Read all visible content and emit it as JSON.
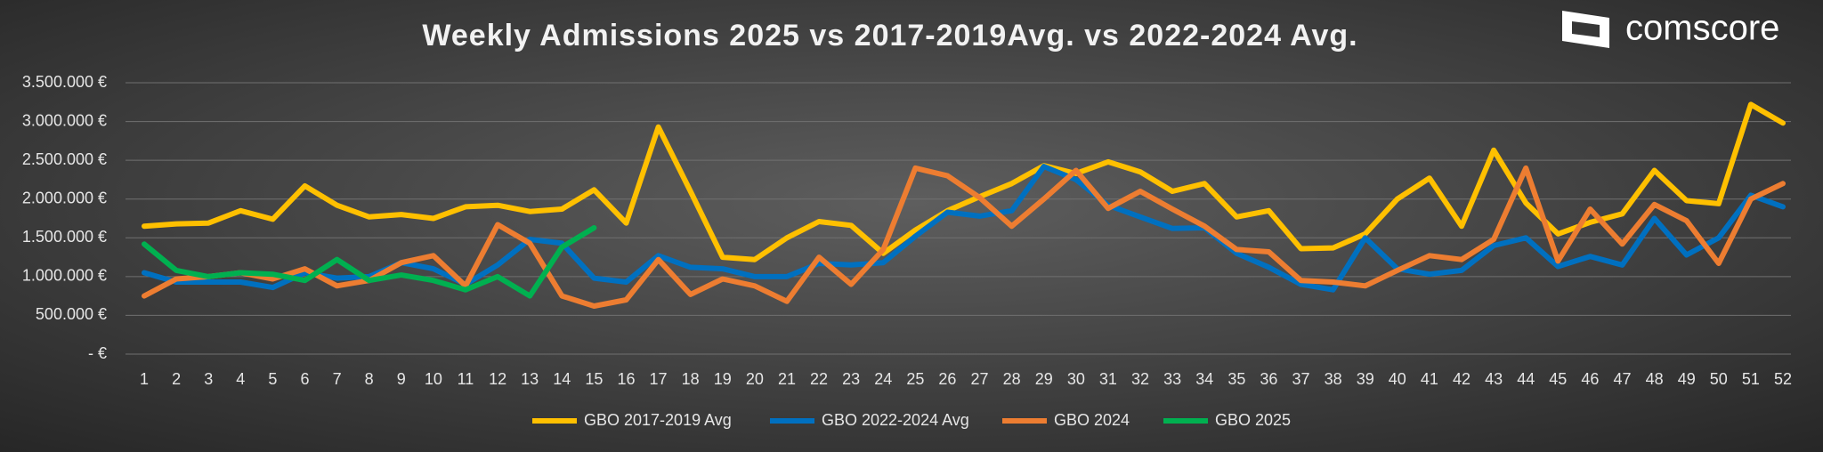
{
  "chart_data": {
    "type": "line",
    "title": "Weekly Admissions 2025 vs 2017-2019Avg. vs 2022-2024 Avg.",
    "logo": "comscore",
    "categories": [
      "1",
      "2",
      "3",
      "4",
      "5",
      "6",
      "7",
      "8",
      "9",
      "10",
      "11",
      "12",
      "13",
      "14",
      "15",
      "16",
      "17",
      "18",
      "19",
      "20",
      "21",
      "22",
      "23",
      "24",
      "25",
      "26",
      "27",
      "28",
      "29",
      "30",
      "31",
      "32",
      "33",
      "34",
      "35",
      "36",
      "37",
      "38",
      "39",
      "40",
      "41",
      "42",
      "43",
      "44",
      "45",
      "46",
      "47",
      "48",
      "49",
      "50",
      "51",
      "52"
    ],
    "ylim": [
      0,
      3500000
    ],
    "yticks": [
      {
        "value": 0,
        "label": "-  €"
      },
      {
        "value": 500000,
        "label": "500.000 €"
      },
      {
        "value": 1000000,
        "label": "1.000.000 €"
      },
      {
        "value": 1500000,
        "label": "1.500.000 €"
      },
      {
        "value": 2000000,
        "label": "2.000.000 €"
      },
      {
        "value": 2500000,
        "label": "2.500.000 €"
      },
      {
        "value": 3000000,
        "label": "3.000.000 €"
      },
      {
        "value": 3500000,
        "label": "3.500.000 €"
      }
    ],
    "grid": true,
    "legend": "bottom",
    "series": [
      {
        "name": "GBO 2017-2019 Avg",
        "color": "#ffc000",
        "values": [
          1650000,
          1680000,
          1690000,
          1850000,
          1740000,
          2170000,
          1920000,
          1770000,
          1800000,
          1750000,
          1900000,
          1920000,
          1840000,
          1870000,
          2120000,
          1690000,
          2930000,
          2100000,
          1250000,
          1220000,
          1500000,
          1710000,
          1660000,
          1300000,
          1600000,
          1850000,
          2030000,
          2200000,
          2430000,
          2330000,
          2480000,
          2350000,
          2100000,
          2200000,
          1770000,
          1850000,
          1360000,
          1370000,
          1550000,
          2000000,
          2270000,
          1650000,
          2630000,
          1950000,
          1550000,
          1700000,
          1810000,
          2370000,
          1980000,
          1940000,
          3220000,
          2980000
        ]
      },
      {
        "name": "GBO 2022-2024 Avg",
        "color": "#0070c0",
        "values": [
          1050000,
          930000,
          930000,
          930000,
          860000,
          1050000,
          980000,
          1000000,
          1180000,
          1100000,
          900000,
          1150000,
          1480000,
          1430000,
          980000,
          930000,
          1270000,
          1120000,
          1100000,
          1000000,
          1000000,
          1170000,
          1150000,
          1180000,
          1520000,
          1830000,
          1780000,
          1850000,
          2420000,
          2250000,
          1920000,
          1770000,
          1620000,
          1630000,
          1300000,
          1120000,
          900000,
          830000,
          1500000,
          1100000,
          1030000,
          1080000,
          1400000,
          1500000,
          1130000,
          1260000,
          1150000,
          1750000,
          1280000,
          1500000,
          2050000,
          1900000
        ]
      },
      {
        "name": "GBO 2024",
        "color": "#ed7d31",
        "values": [
          750000,
          970000,
          1000000,
          1050000,
          970000,
          1100000,
          880000,
          950000,
          1180000,
          1270000,
          880000,
          1670000,
          1430000,
          750000,
          620000,
          700000,
          1220000,
          770000,
          970000,
          880000,
          680000,
          1250000,
          900000,
          1350000,
          2400000,
          2300000,
          2020000,
          1650000,
          2000000,
          2370000,
          1880000,
          2100000,
          1870000,
          1650000,
          1350000,
          1320000,
          950000,
          930000,
          880000,
          1080000,
          1270000,
          1220000,
          1480000,
          2400000,
          1200000,
          1870000,
          1420000,
          1930000,
          1720000,
          1170000,
          2000000,
          2200000
        ]
      },
      {
        "name": "GBO 2025",
        "color": "#00b050",
        "values": [
          1420000,
          1080000,
          1000000,
          1050000,
          1030000,
          950000,
          1220000,
          950000,
          1020000,
          950000,
          830000,
          1000000,
          750000,
          1380000,
          1630000,
          null,
          null,
          null,
          null,
          null,
          null,
          null,
          null,
          null,
          null,
          null,
          null,
          null,
          null,
          null,
          null,
          null,
          null,
          null,
          null,
          null,
          null,
          null,
          null,
          null,
          null,
          null,
          null,
          null,
          null,
          null,
          null,
          null,
          null,
          null,
          null,
          null
        ]
      }
    ]
  }
}
